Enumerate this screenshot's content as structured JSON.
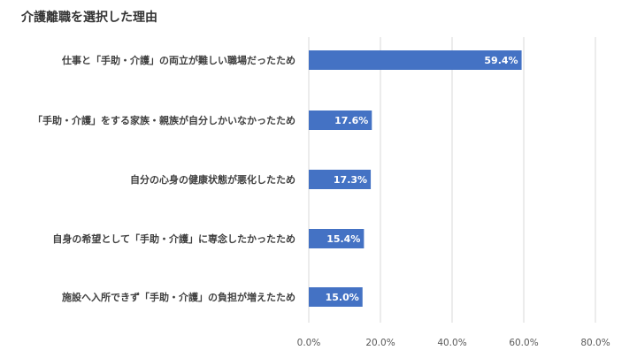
{
  "title": "介護離職を選択した理由",
  "colors": {
    "bar": "#4472c4",
    "grid": "#d9d9d9",
    "label_text": "#404040",
    "tick_text": "#595959",
    "data_label_text": "#ffffff"
  },
  "chart_data": {
    "type": "bar",
    "orientation": "horizontal",
    "categories": [
      "仕事と「手助・介護」の両立が難しい職場だったため",
      "「手助・介護」をする家族・親族が自分しかいなかったため",
      "自分の心身の健康状態が悪化したため",
      "自身の希望として「手助・介護」に専念したかったため",
      "施設へ入所できず「手助・介護」の負担が増えたため"
    ],
    "values": [
      59.4,
      17.6,
      17.3,
      15.4,
      15.0
    ],
    "data_labels": [
      "59.4%",
      "17.6%",
      "17.3%",
      "15.4%",
      "15.0%"
    ],
    "xlim": [
      0,
      80
    ],
    "ticks": [
      0,
      20,
      40,
      60,
      80
    ],
    "tick_labels": [
      "0.0%",
      "20.0%",
      "40.0%",
      "60.0%",
      "80.0%"
    ],
    "grid": true,
    "legend": false,
    "xlabel": "",
    "ylabel": ""
  }
}
